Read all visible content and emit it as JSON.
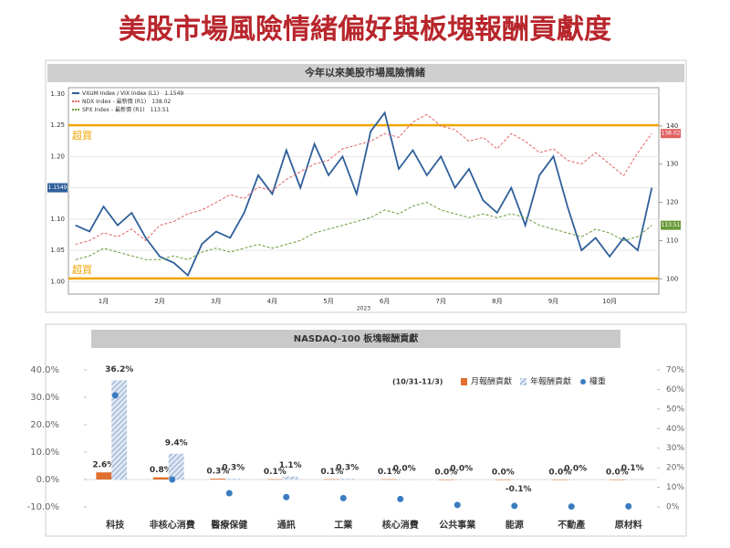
{
  "header": {
    "title": "美股市場風險情緒偏好與板塊報酬貢獻度"
  },
  "chart_data": [
    {
      "type": "line",
      "title": "今年以來美股市場風險情緒",
      "year_label": "2023",
      "categories": [
        null,
        null,
        "1月",
        null,
        null,
        null,
        "2月",
        null,
        null,
        null,
        "3月",
        null,
        null,
        null,
        "4月",
        null,
        null,
        null,
        "5月",
        null,
        null,
        null,
        "6月",
        null,
        null,
        null,
        "7月",
        null,
        null,
        null,
        "8月",
        null,
        null,
        null,
        "9月",
        null,
        null,
        null,
        "10月",
        null,
        null,
        null
      ],
      "series": [
        {
          "name": "VXUM Index / VIX Index (L1)",
          "last_label": "1.1549",
          "color": "#2f5f9a",
          "dashed": false,
          "values": [
            1.09,
            1.08,
            1.12,
            1.09,
            1.11,
            1.07,
            1.04,
            1.03,
            1.01,
            1.06,
            1.08,
            1.07,
            1.11,
            1.17,
            1.14,
            1.21,
            1.15,
            1.22,
            1.17,
            1.2,
            1.14,
            1.24,
            1.27,
            1.18,
            1.21,
            1.17,
            1.2,
            1.15,
            1.18,
            1.13,
            1.11,
            1.15,
            1.09,
            1.17,
            1.2,
            1.12,
            1.05,
            1.07,
            1.04,
            1.07,
            1.05,
            1.15
          ]
        },
        {
          "name": "NDX Index - 最新價 (R1)",
          "last_label": "138.02",
          "color": "#e06060",
          "dashed": true,
          "axis": "y2",
          "values": [
            109,
            110,
            112,
            111,
            113,
            110,
            114,
            115,
            117,
            118,
            120,
            122,
            121,
            124,
            123,
            126,
            128,
            130,
            131,
            134,
            135,
            136,
            138,
            137,
            141,
            143,
            140,
            139,
            136,
            137,
            134,
            138,
            136,
            133,
            134,
            131,
            130,
            133,
            130,
            127,
            133,
            138
          ]
        },
        {
          "name": "SPX Index - 最新價 (R1)",
          "last_label": "113.51",
          "color": "#6a9a3a",
          "dashed": true,
          "axis": "y2",
          "values": [
            105,
            106,
            108,
            107,
            106,
            105,
            105,
            106,
            105,
            107,
            108,
            107,
            108,
            109,
            108,
            109,
            110,
            112,
            113,
            114,
            115,
            116,
            118,
            117,
            119,
            120,
            118,
            117,
            116,
            117,
            116,
            117,
            116,
            114,
            113,
            112,
            111,
            113,
            112,
            110,
            111,
            114
          ]
        }
      ],
      "reference_lines": [
        {
          "value": 1.25,
          "label": "超買",
          "color": "#f0a500"
        },
        {
          "value": 1.005,
          "label": "超買",
          "color": "#f0a500"
        }
      ],
      "ylim": [
        0.98,
        1.31
      ],
      "yticks": [
        {
          "value": 1.0,
          "label": "1.00"
        },
        {
          "value": 1.05,
          "label": "1.05"
        },
        {
          "value": 1.1,
          "label": "1.10"
        },
        {
          "value": 1.15,
          "label": "1.15"
        },
        {
          "value": 1.2,
          "label": "1.20"
        },
        {
          "value": 1.25,
          "label": "1.25"
        },
        {
          "value": 1.3,
          "label": "1.30"
        }
      ],
      "y2lim": [
        96,
        150
      ],
      "y2ticks": [
        100,
        110,
        120,
        130,
        140
      ],
      "grid": true
    },
    {
      "type": "combo",
      "title": "NASDAQ-100 板塊報酬貢獻",
      "subtitle": "(10/31-11/3)",
      "categories": [
        "科技",
        "非核心消費",
        "醫療保健",
        "通訊",
        "工業",
        "核心消費",
        "公共事業",
        "能源",
        "不動產",
        "原材料"
      ],
      "series": [
        {
          "name": "月報酬貢獻",
          "style": "bar",
          "color": "#e07030",
          "values": [
            2.6,
            0.8,
            0.3,
            0.1,
            0.1,
            0.1,
            0.0,
            0.0,
            0.0,
            0.0
          ],
          "value_labels": [
            "2.6%",
            "0.8%",
            "0.3%",
            "0.1%",
            "0.1%",
            "0.1%",
            "0.0%",
            "0.0%",
            "0.0%",
            "0.0%"
          ]
        },
        {
          "name": "年報酬貢獻",
          "style": "hatch",
          "color": "#9fb8d8",
          "values": [
            36.2,
            9.4,
            0.3,
            1.1,
            0.3,
            0.0,
            0.0,
            -0.1,
            0.0,
            0.1
          ],
          "value_labels": [
            "36.2%",
            "9.4%",
            "0.3%",
            "1.1%",
            "0.3%",
            "0.0%",
            "0.0%",
            "-0.1%",
            "0.0%",
            "0.1%"
          ]
        },
        {
          "name": "權重",
          "style": "scatter",
          "color": "#3a7cc0",
          "axis": "y2",
          "values": [
            57,
            14,
            7,
            5,
            4.5,
            4,
            1,
            0.5,
            0.2,
            0.3
          ]
        }
      ],
      "ylim": [
        -10,
        40
      ],
      "yticks": [
        {
          "value": -10,
          "label": "-10.0%"
        },
        {
          "value": 0,
          "label": "0.0%"
        },
        {
          "value": 10,
          "label": "10.0%"
        },
        {
          "value": 20,
          "label": "20.0%"
        },
        {
          "value": 30,
          "label": "30.0%"
        },
        {
          "value": 40,
          "label": "40.0%"
        }
      ],
      "y2lim": [
        0,
        70
      ],
      "y2ticks": [
        {
          "value": 0,
          "label": "0%"
        },
        {
          "value": 10,
          "label": "10%"
        },
        {
          "value": 20,
          "label": "20%"
        },
        {
          "value": 30,
          "label": "30%"
        },
        {
          "value": 40,
          "label": "40%"
        },
        {
          "value": 50,
          "label": "50%"
        },
        {
          "value": 60,
          "label": "60%"
        },
        {
          "value": 70,
          "label": "70%"
        }
      ]
    }
  ]
}
